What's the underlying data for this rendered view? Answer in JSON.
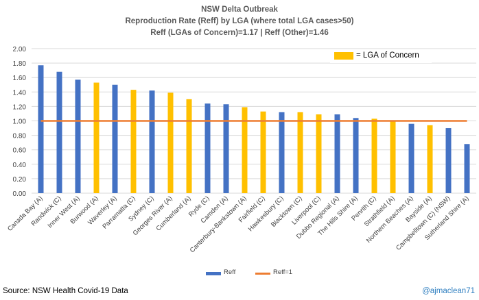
{
  "title_lines": [
    "NSW Delta Outbreak",
    "Reproduction Rate (Reff) by LGA (where total LGA cases>50)",
    "Reff (LGAs of Concern)=1.17 | Reff (Other)=1.46"
  ],
  "inset_legend": {
    "label": "= LGA of Concern",
    "color": "#ffc000"
  },
  "bottom_legend": {
    "bar_label": "Reff",
    "line_label": "Reff=1"
  },
  "footer": {
    "source": "Source: NSW Health Covid-19 Data",
    "credit": "@ajmaclean71"
  },
  "colors": {
    "other": "#4472c4",
    "concern": "#ffc000",
    "line": "#ed7d31",
    "grid": "#d9d9d9"
  },
  "chart_data": {
    "type": "bar",
    "title": "NSW Delta Outbreak",
    "ylim": [
      0,
      2
    ],
    "yticks": [
      "0.00",
      "0.20",
      "0.40",
      "0.60",
      "0.80",
      "1.00",
      "1.20",
      "1.40",
      "1.60",
      "1.80",
      "2.00"
    ],
    "grid": true,
    "categories": [
      "Canada Bay (A)",
      "Randwick (C)",
      "Inner West (A)",
      "Burwood (A)",
      "Waverley (A)",
      "Parramatta (C)",
      "Sydney (C)",
      "Georges River (A)",
      "Cumberland (A)",
      "Ryde (C)",
      "Camden (A)",
      "Canterbury-Bankstown (A)",
      "Fairfield (C)",
      "Hawkesbury (C)",
      "Blacktown (C)",
      "Liverpool (C)",
      "Dubbo Regional (A)",
      "The Hills Shire (A)",
      "Penrith (C)",
      "Strathfield (A)",
      "Northern Beaches (A)",
      "Bayside (A)",
      "Campbelltown (C) (NSW)",
      "Sutherland Shire (A)"
    ],
    "series": [
      {
        "name": "Reff",
        "type": "bar",
        "values": [
          1.77,
          1.68,
          1.57,
          1.53,
          1.5,
          1.43,
          1.42,
          1.39,
          1.3,
          1.24,
          1.23,
          1.19,
          1.13,
          1.12,
          1.12,
          1.09,
          1.09,
          1.04,
          1.03,
          1.0,
          0.96,
          0.94,
          0.9,
          0.68
        ],
        "lga_of_concern": [
          false,
          false,
          false,
          true,
          false,
          true,
          false,
          true,
          true,
          false,
          false,
          true,
          true,
          false,
          true,
          true,
          false,
          false,
          true,
          true,
          false,
          true,
          false,
          false
        ]
      },
      {
        "name": "Reff=1",
        "type": "line",
        "value": 1.0
      }
    ],
    "legend": [
      "Reff",
      "Reff=1"
    ]
  }
}
